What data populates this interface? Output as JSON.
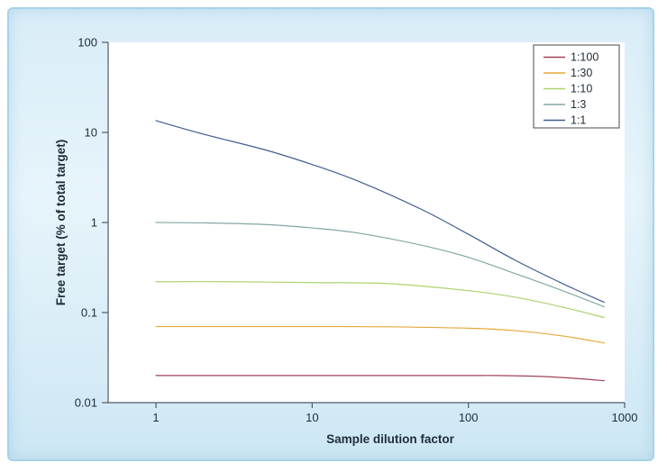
{
  "figure": {
    "card_border_color": "#a6d3e9",
    "card_background_top": "#d9edf8",
    "card_background_bottom": "#cde7f4",
    "plot_background": "#ffffff",
    "axis_color": "#4f5b64",
    "text_color": "#1e2c38",
    "legend_border_color": "#4a4a4a"
  },
  "chart_data": {
    "type": "line",
    "title": "",
    "xlabel": "Sample dilution factor",
    "ylabel": "Free target (% of total target)",
    "x_scale": "log",
    "y_scale": "log",
    "xlim": [
      0.4944,
      1000
    ],
    "ylim": [
      0.01,
      100
    ],
    "x_ticks": [
      1,
      10,
      100,
      1000
    ],
    "x_tick_labels": [
      "1",
      "10",
      "100",
      "1000"
    ],
    "y_ticks": [
      100,
      10,
      1,
      0.1,
      0.01
    ],
    "y_tick_labels": [
      "100",
      "10",
      "1",
      "0.1",
      "0.01"
    ],
    "grid": false,
    "legend_position": "top-right",
    "series": [
      {
        "name": "1:100",
        "color": "#a14358",
        "points": [
          [
            1,
            0.02
          ],
          [
            3,
            0.02
          ],
          [
            10,
            0.02
          ],
          [
            30,
            0.02
          ],
          [
            100,
            0.02
          ],
          [
            150,
            0.02
          ],
          [
            300,
            0.0195
          ],
          [
            500,
            0.0185
          ],
          [
            740,
            0.0175
          ]
        ]
      },
      {
        "name": "1:30",
        "color": "#e7a93c",
        "points": [
          [
            1,
            0.07
          ],
          [
            3,
            0.07
          ],
          [
            10,
            0.07
          ],
          [
            30,
            0.0695
          ],
          [
            100,
            0.067
          ],
          [
            200,
            0.063
          ],
          [
            400,
            0.055
          ],
          [
            740,
            0.046
          ]
        ]
      },
      {
        "name": "1:10",
        "color": "#abd36e",
        "points": [
          [
            1,
            0.22
          ],
          [
            3,
            0.22
          ],
          [
            10,
            0.215
          ],
          [
            30,
            0.21
          ],
          [
            100,
            0.175
          ],
          [
            200,
            0.148
          ],
          [
            400,
            0.115
          ],
          [
            740,
            0.088
          ]
        ]
      },
      {
        "name": "1:3",
        "color": "#82a7a4",
        "points": [
          [
            1,
            1.0
          ],
          [
            2,
            0.99
          ],
          [
            5,
            0.95
          ],
          [
            10,
            0.87
          ],
          [
            20,
            0.76
          ],
          [
            50,
            0.56
          ],
          [
            100,
            0.41
          ],
          [
            200,
            0.27
          ],
          [
            400,
            0.175
          ],
          [
            740,
            0.116
          ]
        ]
      },
      {
        "name": "1:1",
        "color": "#405d90",
        "points": [
          [
            1,
            13.5
          ],
          [
            2,
            9.6
          ],
          [
            5,
            6.4
          ],
          [
            10,
            4.4
          ],
          [
            20,
            2.85
          ],
          [
            50,
            1.4
          ],
          [
            100,
            0.74
          ],
          [
            200,
            0.38
          ],
          [
            400,
            0.21
          ],
          [
            740,
            0.13
          ]
        ]
      }
    ],
    "legend_order": [
      "1:100",
      "1:30",
      "1:10",
      "1:3",
      "1:1"
    ]
  }
}
